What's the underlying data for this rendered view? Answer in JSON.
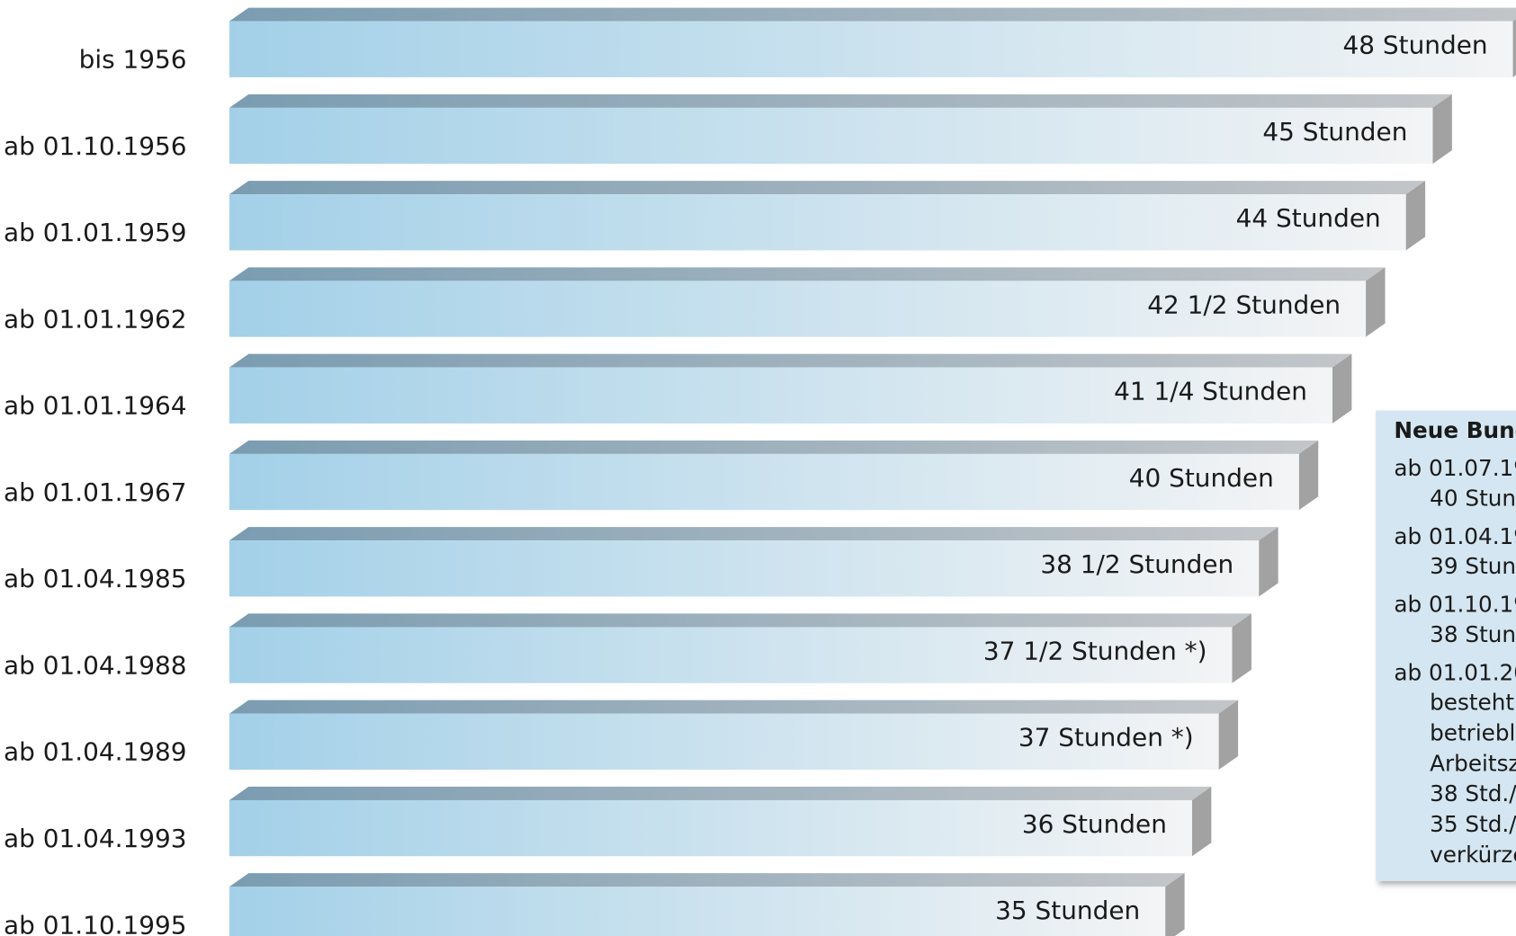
{
  "chart_data": {
    "type": "bar3d",
    "categories": [
      "bis 1956",
      "ab 01.10.1956",
      "ab 01.01.1959",
      "ab 01.01.1962",
      "ab 01.01.1964",
      "ab 01.01.1967",
      "ab 01.04.1985",
      "ab 01.04.1988",
      "ab 01.04.1989",
      "ab 01.04.1993",
      "ab 01.10.1995"
    ],
    "values": [
      48,
      45,
      44,
      42.5,
      41.25,
      40,
      38.5,
      37.5,
      37,
      36,
      35
    ],
    "value_labels": [
      "48 Stunden",
      "45 Stunden",
      "44 Stunden",
      "42 1/2 Stunden",
      "41 1/4 Stunden",
      "40 Stunden",
      "38 1/2 Stunden",
      "37 1/2 Stunden *)",
      "37 Stunden *)",
      "36 Stunden",
      "35 Stunden"
    ],
    "xlim": [
      0,
      48
    ],
    "color": "#a3d0e8"
  },
  "side_box": {
    "title": "Neue Bund",
    "entries": [
      {
        "date": "ab 01.07.19",
        "lines": [
          "40 Stun"
        ]
      },
      {
        "date": "ab 01.04.19",
        "lines": [
          "39 Stun"
        ]
      },
      {
        "date": "ab 01.10.19",
        "lines": [
          "38 Stun"
        ]
      },
      {
        "date": "ab 01.01.20",
        "lines": [
          "besteht",
          "betriebl",
          "Arbeitsz",
          "38 Std./",
          "35 Std./",
          "verkürze"
        ]
      }
    ]
  }
}
